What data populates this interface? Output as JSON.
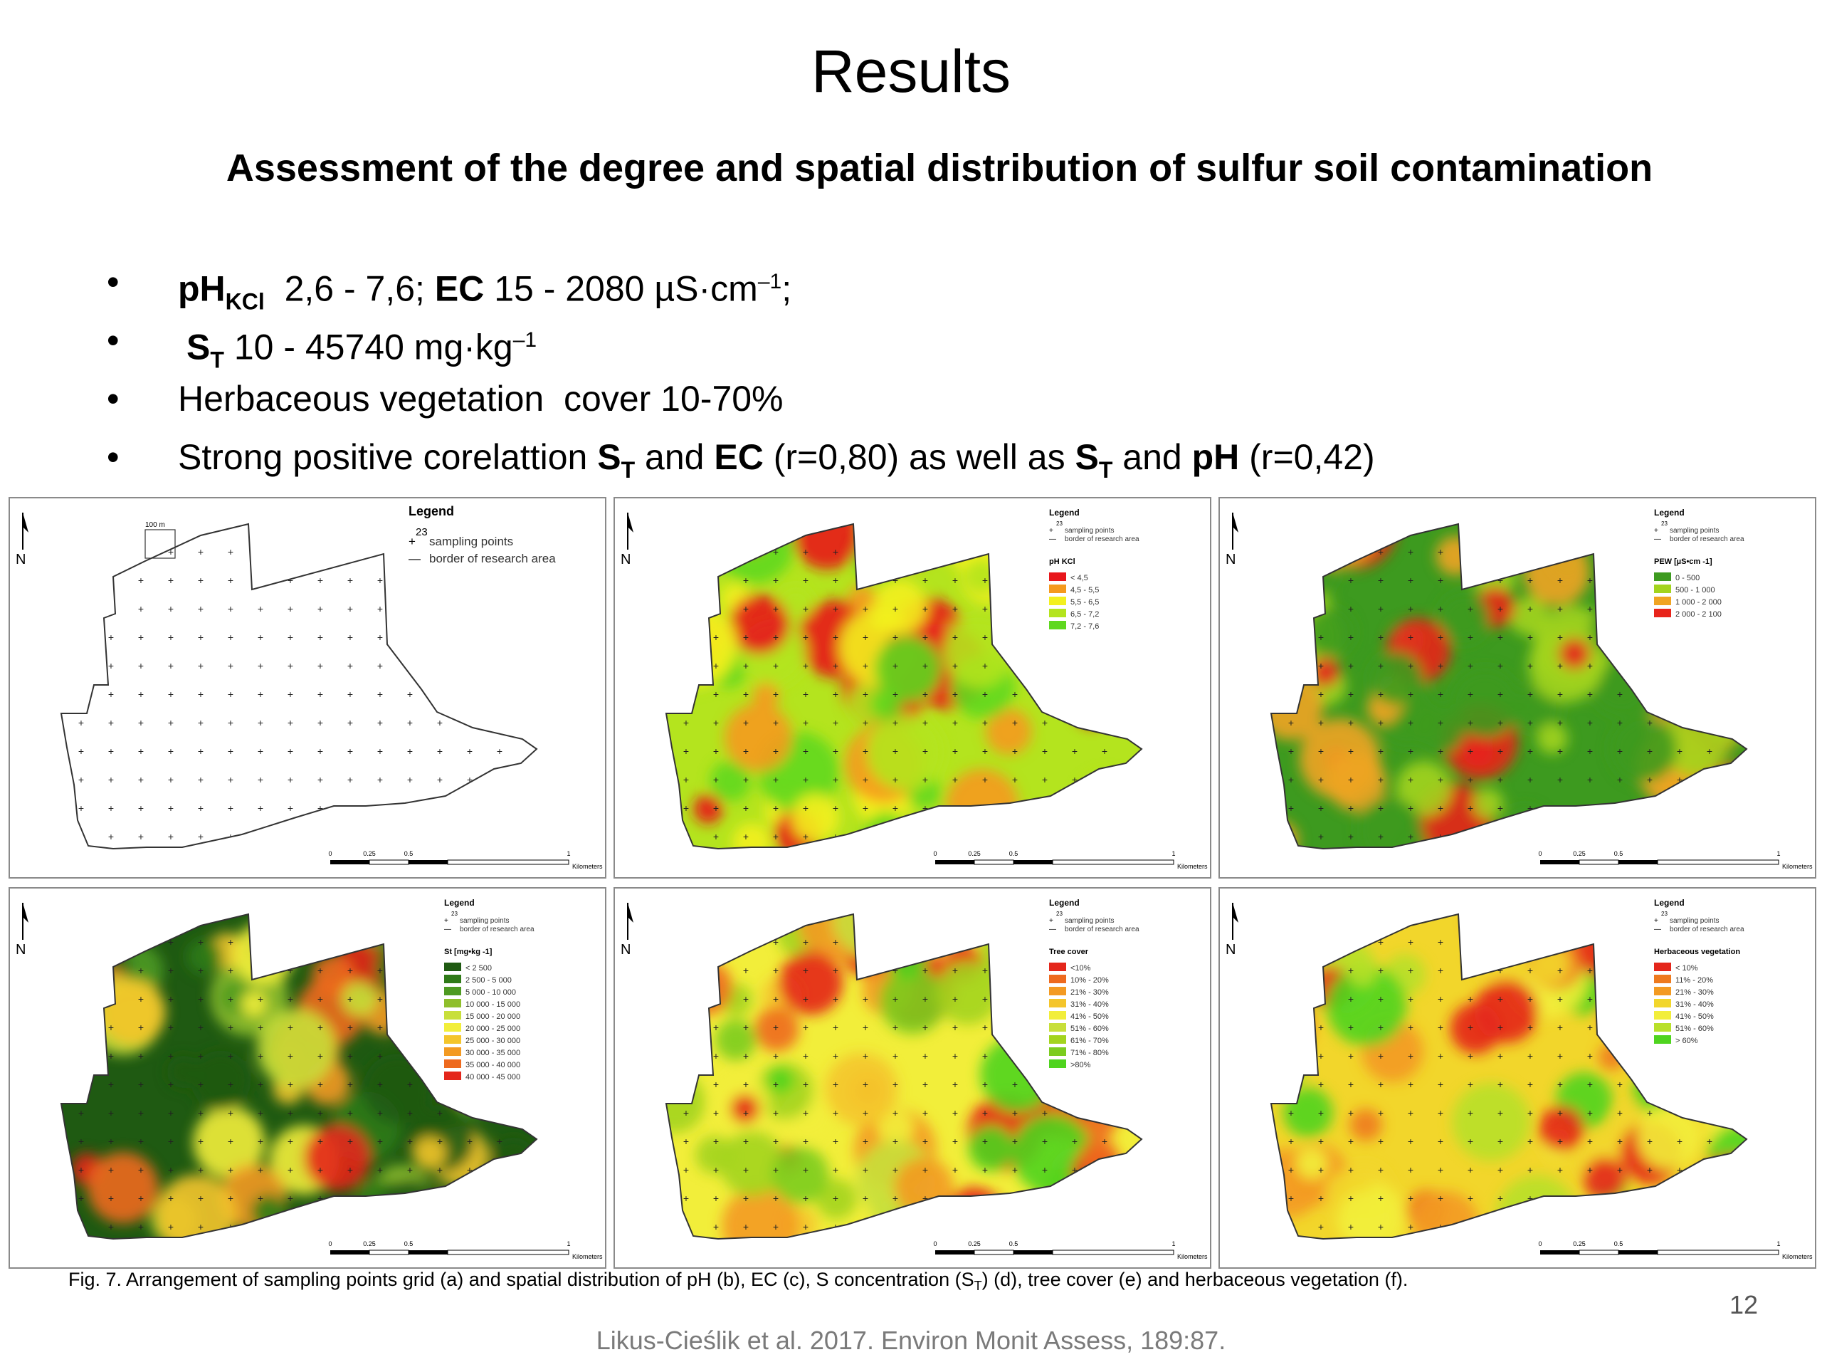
{
  "slide": {
    "title": "Results",
    "subtitle": "Assessment of the degree and spatial distribution of sulfur soil contamination",
    "page_number": "12",
    "credit": "Likus-Cieślik et al. 2017. Environ Monit Assess, 189:87.",
    "bullet_char": "•",
    "bullets": [
      {
        "ph": "pH",
        "ph_sub": "KCl",
        "ph_range": "2,6 - 7,6;",
        "ec": "EC",
        "ec_range": "15 - 2080 µS·cm",
        "ec_sup": "–1",
        "ec_end": ";"
      },
      {
        "s": "S",
        "s_sub": "T",
        "s_range": "10 - 45740 mg·kg",
        "s_sup": "–1"
      },
      {
        "text": "Herbaceous vegetation  cover 10-70%"
      },
      {
        "pre": "Strong positive corelattion ",
        "s1": "S",
        "s1_sub": "T",
        "and1": " and ",
        "ec": "EC",
        "mid": " (r=0,80) as well as ",
        "s2": "S",
        "s2_sub": "T",
        "and2": " and ",
        "ph": "pH",
        "post": " (r=0,42)"
      }
    ]
  },
  "figure": {
    "caption_parts": {
      "a": "Fig. 7. Arrangement of sampling points grid (a) and spatial distribution of pH (b), EC (c), S concentration (S",
      "sub": "T",
      "b": ") (d), tree cover (e) and herbaceous vegetation (f)."
    },
    "panels": [
      {
        "id": "a",
        "legend_title": "Legend",
        "legend_items": [
          "sampling points",
          "border of research area"
        ],
        "sample_number": "23",
        "scale_labels": [
          "0",
          "0.25",
          "0.5",
          "1",
          "Kilometers"
        ],
        "cell_label": "100 m",
        "colors": []
      },
      {
        "id": "b",
        "legend_title": "Legend",
        "legend_items": [
          "sampling points",
          "border of research area"
        ],
        "sample_number": "23",
        "variable": "pH  KCl",
        "classes": [
          "< 4,5",
          "4,5 - 5,5",
          "5,5 - 6,5",
          "6,5 - 7,2",
          "7,2 - 7,6"
        ],
        "colors": [
          "#e8161b",
          "#f59a1d",
          "#f3f01e",
          "#b4e41e",
          "#5fd81f"
        ],
        "scale_labels": [
          "0",
          "0.25",
          "0.5",
          "1",
          "Kilometers"
        ]
      },
      {
        "id": "c",
        "legend_title": "Legend",
        "legend_items": [
          "sampling points",
          "border of research area"
        ],
        "sample_number": "23",
        "variable": "PEW [µS•cm -1]",
        "classes": [
          "0 - 500",
          "500 - 1 000",
          "1 000 - 2 000",
          "2 000 - 2 100"
        ],
        "colors": [
          "#3d9a1f",
          "#a3d41e",
          "#f0a422",
          "#e8241b"
        ],
        "scale_labels": [
          "0",
          "0.25",
          "0.5",
          "1",
          "Kilometers"
        ]
      },
      {
        "id": "d",
        "legend_title": "Legend",
        "legend_items": [
          "sampling points",
          "border of research area"
        ],
        "sample_number": "23",
        "variable": "St [mg•kg -1]",
        "classes": [
          "< 2 500",
          "2 500 - 5 000",
          "5 000 - 10 000",
          "10 000 - 15 000",
          "15 000 - 20 000",
          "20 000 - 25 000",
          "25 000 - 30 000",
          "30 000 - 35 000",
          "35 000 - 40 000",
          "40 000 - 45 000"
        ],
        "colors": [
          "#1f5a12",
          "#2f7a18",
          "#4e9a22",
          "#8fbf2b",
          "#c8df3a",
          "#f2ee3a",
          "#f4c52b",
          "#f39a22",
          "#ee6a1e",
          "#e4261b"
        ],
        "scale_labels": [
          "0",
          "0.25",
          "0.5",
          "1",
          "Kilometers"
        ]
      },
      {
        "id": "e",
        "legend_title": "Legend",
        "legend_items": [
          "sampling points",
          "border of research area"
        ],
        "sample_number": "23",
        "variable": "Tree cover",
        "classes": [
          "<10%",
          "10% - 20%",
          "21% - 30%",
          "31% - 40%",
          "41% - 50%",
          "51% - 60%",
          "61% - 70%",
          "71% - 80%",
          ">80%"
        ],
        "colors": [
          "#e4261b",
          "#ee6a1e",
          "#f39a22",
          "#f4c52b",
          "#f2ee3a",
          "#c8df3a",
          "#a3d41e",
          "#7ccc1f",
          "#4fd41f"
        ],
        "scale_labels": [
          "0",
          "0.25",
          "0.5",
          "1",
          "Kilometers"
        ]
      },
      {
        "id": "f",
        "legend_title": "Legend",
        "legend_items": [
          "sampling points",
          "border of research area"
        ],
        "sample_number": "23",
        "variable": "Herbaceous vegetation",
        "classes": [
          "< 10%",
          "11% - 20%",
          "21% - 30%",
          "31% - 40%",
          "41% - 50%",
          "51% - 60%",
          "> 60%"
        ],
        "colors": [
          "#e4261b",
          "#ee7a1e",
          "#f39a22",
          "#f2d62b",
          "#f2ee3a",
          "#b8e02a",
          "#4fd41f"
        ],
        "scale_labels": [
          "0",
          "0.25",
          "0.5",
          "1",
          "Kilometers"
        ]
      }
    ]
  }
}
